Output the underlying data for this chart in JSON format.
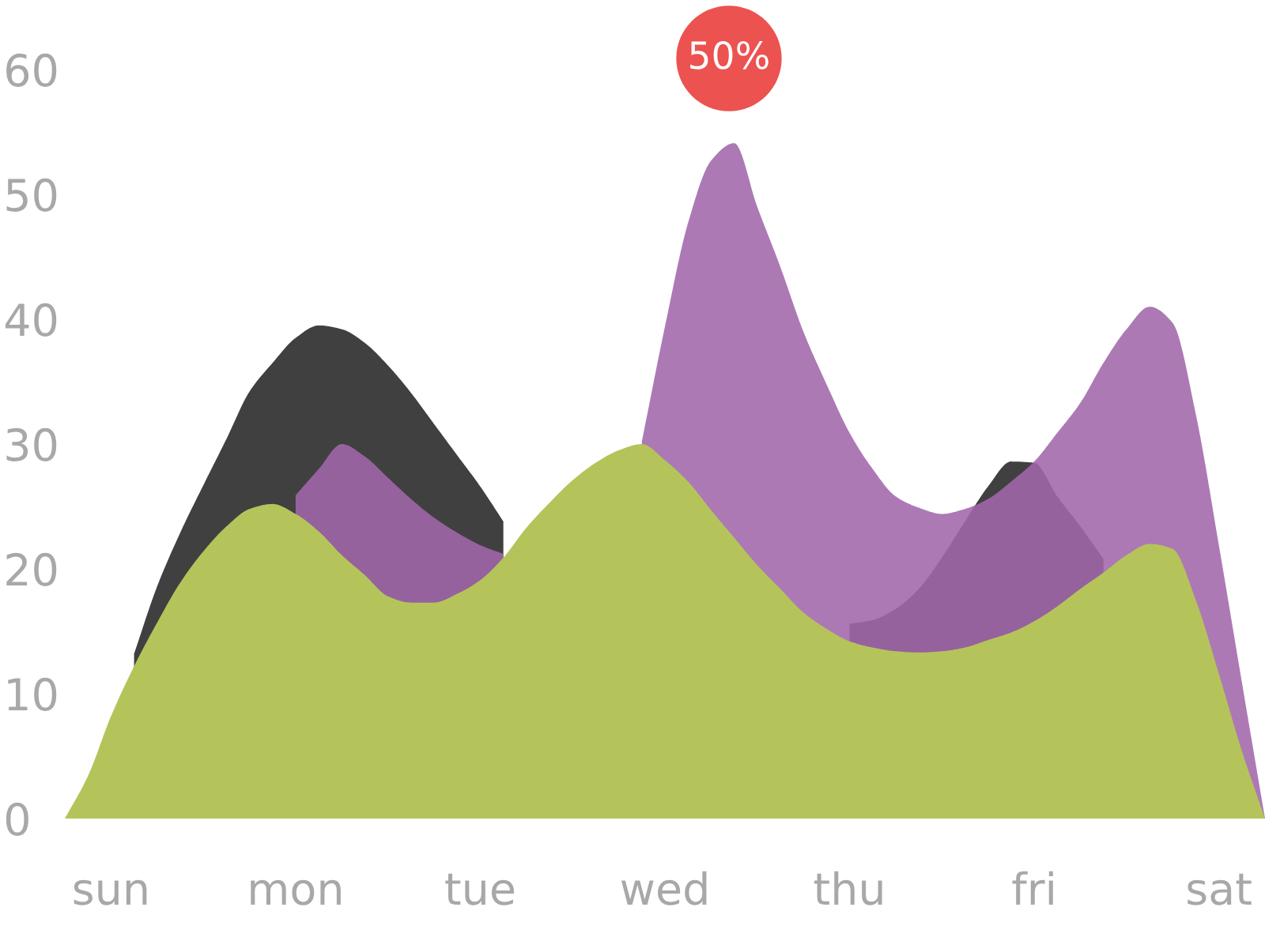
{
  "chart_data": {
    "type": "area",
    "categories": [
      null,
      null,
      "sun",
      null,
      null,
      null,
      null,
      null,
      null,
      null,
      "mon",
      null,
      null,
      null,
      null,
      null,
      null,
      null,
      "tue",
      null,
      null,
      null,
      null,
      null,
      null,
      null,
      "wed",
      null,
      null,
      null,
      null,
      null,
      null,
      null,
      "thu",
      null,
      null,
      null,
      null,
      null,
      null,
      null,
      "fri",
      null,
      null,
      null,
      null,
      null,
      null,
      null,
      "sat",
      null,
      null
    ],
    "ylim": [
      0,
      60
    ],
    "yticks": [
      0,
      10,
      20,
      30,
      40,
      50,
      60
    ],
    "series": [
      {
        "color": "#404040",
        "values": [
          null,
          null,
          null,
          13.2,
          18.6,
          22.9,
          26.7,
          30.4,
          34.2,
          36.5,
          38.5,
          39.5,
          39.2,
          38.1,
          36.3,
          34.1,
          31.6,
          29.1,
          26.6,
          23.8,
          null,
          null,
          null,
          null,
          null,
          null,
          null,
          null,
          null,
          null,
          null,
          null,
          null,
          null,
          15.6,
          15.9,
          16.8,
          18.4,
          20.9,
          23.8,
          26.6,
          28.6,
          28.5,
          25.8,
          23.4,
          20.8,
          null,
          null,
          null,
          null,
          null,
          null,
          null
        ]
      },
      {
        "color": "#a066ab",
        "values": [
          null,
          null,
          null,
          null,
          null,
          null,
          null,
          null,
          null,
          null,
          25.9,
          28.0,
          30.0,
          29.0,
          27.3,
          25.6,
          24.1,
          22.9,
          21.9,
          21.2,
          null,
          null,
          null,
          null,
          null,
          30.2,
          39.4,
          47.7,
          52.7,
          54.1,
          49.0,
          44.2,
          39.0,
          34.8,
          30.9,
          28.0,
          25.8,
          24.9,
          24.4,
          24.8,
          25.6,
          27.0,
          28.6,
          30.9,
          33.3,
          36.5,
          39.2,
          41.0,
          39.7,
          32.4,
          21.9,
          10.9,
          0
        ]
      },
      {
        "color": "#b5c45a",
        "values": [
          0,
          3.4,
          8.2,
          12.2,
          15.7,
          18.9,
          21.4,
          23.4,
          24.8,
          25.2,
          24.4,
          23.0,
          21.1,
          19.5,
          17.8,
          17.3,
          17.3,
          18.0,
          19.1,
          20.9,
          23.3,
          25.3,
          27.1,
          28.5,
          29.5,
          30.0,
          28.7,
          27.0,
          24.7,
          22.5,
          20.3,
          18.4,
          16.5,
          15.2,
          14.2,
          13.7,
          13.4,
          13.3,
          13.4,
          13.7,
          14.3,
          14.9,
          15.8,
          17.0,
          18.4,
          19.7,
          21.1,
          22.0,
          21.6,
          17.5,
          11.6,
          5.4,
          0
        ]
      }
    ],
    "annotations": [
      "50%"
    ]
  }
}
